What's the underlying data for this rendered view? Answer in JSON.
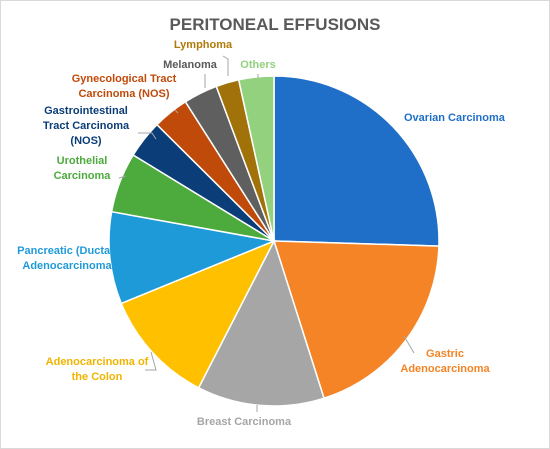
{
  "chart_data": {
    "type": "pie",
    "title": "PERITONEAL EFFUSIONS",
    "start_angle_deg": 0,
    "direction": "clockwise",
    "slices": [
      {
        "name": "Ovarian Carcinoma",
        "label_lines": [
          "Ovarian Carcinoma"
        ],
        "value": 26.0,
        "color": "#1f6fc8",
        "label_color": "#1f6fc8"
      },
      {
        "name": "Gastric Adenocarcinoma",
        "label_lines": [
          "Gastric",
          "Adenocarcinoma"
        ],
        "value": 20.0,
        "color": "#f58426",
        "label_color": "#f58426"
      },
      {
        "name": "Breast Carcinoma",
        "label_lines": [
          "Breast Carcinoma"
        ],
        "value": 12.7,
        "color": "#a6a6a6",
        "label_color": "#a6a6a6"
      },
      {
        "name": "Adenocarcinoma of the Colon",
        "label_lines": [
          "Adenocarcinoma of",
          "the Colon"
        ],
        "value": 11.5,
        "color": "#ffc000",
        "label_color": "#f0b400"
      },
      {
        "name": "Pancreatic (Ductal) Adenocarcinoma",
        "label_lines": [
          "Pancreatic (Ductal)",
          "Adenocarcinoma"
        ],
        "value": 9.2,
        "color": "#1f9ad9",
        "label_color": "#1f9ad9"
      },
      {
        "name": "Urothelial Carcinoma",
        "label_lines": [
          "Urothelial",
          "Carcinoma"
        ],
        "value": 6.0,
        "color": "#4daa3c",
        "label_color": "#4daa3c"
      },
      {
        "name": "Gastrointestinal Tract Carcinoma (NOS)",
        "label_lines": [
          "Gastrointestinal",
          "Tract Carcinoma",
          "(NOS)"
        ],
        "value": 3.8,
        "color": "#0b3d78",
        "label_color": "#0b3d78"
      },
      {
        "name": "Gynecological Tract Carcinoma (NOS)",
        "label_lines": [
          "Gynecological Tract",
          "Carcinoma (NOS)"
        ],
        "value": 3.6,
        "color": "#c04a0a",
        "label_color": "#c04a0a"
      },
      {
        "name": "Melanoma",
        "label_lines": [
          "Melanoma"
        ],
        "value": 3.4,
        "color": "#5f5f5f",
        "label_color": "#595959"
      },
      {
        "name": "Lymphoma",
        "label_lines": [
          "Lymphoma"
        ],
        "value": 2.3,
        "color": "#a07209",
        "label_color": "#b07a0a"
      },
      {
        "name": "Others",
        "label_lines": [
          "Others"
        ],
        "value": 3.5,
        "color": "#93d17f",
        "label_color": "#93d17f"
      }
    ]
  }
}
